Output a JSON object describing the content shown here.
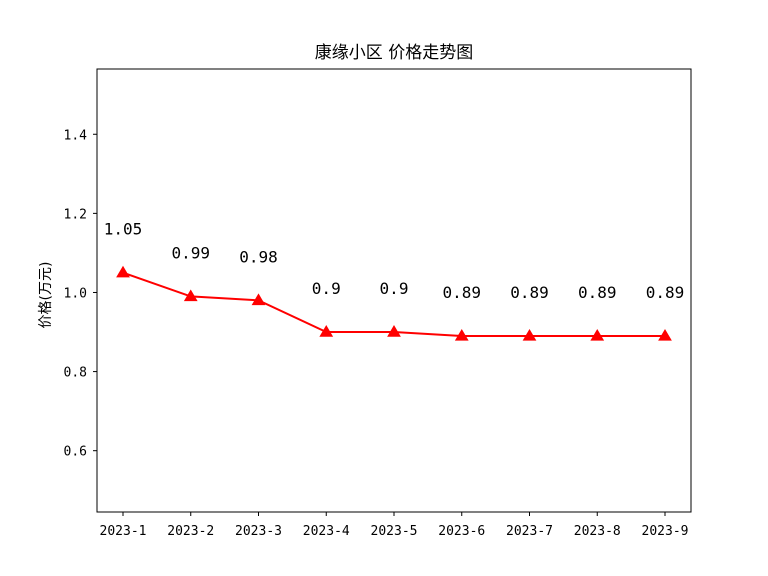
{
  "chart_data": {
    "type": "line",
    "title": "康缘小区 价格走势图",
    "xlabel": "",
    "ylabel": "价格(万元)",
    "categories": [
      "2023-1",
      "2023-2",
      "2023-3",
      "2023-4",
      "2023-5",
      "2023-6",
      "2023-7",
      "2023-8",
      "2023-9"
    ],
    "series": [
      {
        "values": [
          1.05,
          0.99,
          0.98,
          0.9,
          0.9,
          0.89,
          0.89,
          0.89,
          0.89
        ],
        "data_labels": [
          "1.05",
          "0.99",
          "0.98",
          "0.9",
          "0.9",
          "0.89",
          "0.89",
          "0.89",
          "0.89"
        ],
        "color": "#ff0000",
        "marker": "triangle"
      }
    ],
    "ylim": [
      0.445,
      1.565
    ],
    "yticks": [
      0.6,
      0.8,
      1.0,
      1.2,
      1.4
    ],
    "ytick_labels": [
      "0.6",
      "0.8",
      "1.0",
      "1.2",
      "1.4"
    ],
    "grid": false,
    "legend": "none"
  }
}
